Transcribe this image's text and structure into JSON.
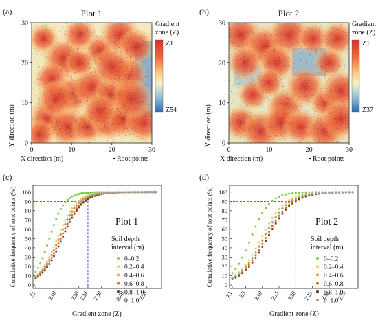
{
  "figure": {
    "panels": [
      {
        "letter": "(a)",
        "title": "Plot 1",
        "legend_title": "Gradient zone (Z)",
        "legend_top": "Z1",
        "legend_bottom": "Z54"
      },
      {
        "letter": "(b)",
        "title": "Plot 2",
        "legend_title": "Gradient zone (Z)",
        "legend_top": "Z1",
        "legend_bottom": "Z37"
      },
      {
        "letter": "(c)",
        "title": "Plot 1",
        "legend_header": "Soil depth interval  (m)",
        "ref_label": "Z24"
      },
      {
        "letter": "(d)",
        "title": "Plot 2",
        "legend_header": "Soil depth interval  (m)",
        "ref_label": "Z20"
      }
    ],
    "map_xlabel": "X direction (m)",
    "map_ylabel": "Y direction (m)",
    "root_points_label": "Root points",
    "curve_xlabel": "Gradient zone (Z)",
    "curve_ylabel": "Cumulative frequency of root points (%)"
  },
  "chart_data": [
    {
      "id": "a",
      "type": "heatmap",
      "title": "Plot 1",
      "xlabel": "X direction (m)",
      "ylabel": "Y direction (m)",
      "xlim": [
        0,
        30
      ],
      "ylim": [
        0,
        30
      ],
      "xticks": [
        0,
        10,
        20,
        30
      ],
      "yticks": [
        0,
        10,
        20,
        30
      ],
      "colorbar": {
        "title": "Gradient zone (Z)",
        "top": "Z1",
        "bottom": "Z54"
      },
      "colors": {
        "high": "#d73027",
        "mid": "#f7f1c6",
        "low": "#2f6db5"
      },
      "root_point_centers": [
        [
          3,
          26
        ],
        [
          8,
          21
        ],
        [
          12,
          27
        ],
        [
          17,
          23
        ],
        [
          22,
          27
        ],
        [
          26,
          24
        ],
        [
          5,
          16
        ],
        [
          10,
          12
        ],
        [
          15,
          14
        ],
        [
          20,
          12
        ],
        [
          24,
          17
        ],
        [
          4,
          6
        ],
        [
          9,
          4
        ],
        [
          14,
          4
        ],
        [
          19,
          5
        ],
        [
          23,
          6
        ],
        [
          28,
          5
        ],
        [
          12,
          20
        ],
        [
          6,
          11
        ],
        [
          17,
          8
        ],
        [
          25,
          11
        ],
        [
          20,
          19
        ],
        [
          2,
          2
        ]
      ]
    },
    {
      "id": "b",
      "type": "heatmap",
      "title": "Plot 2",
      "xlabel": "X direction (m)",
      "ylabel": "Y direction (m)",
      "xlim": [
        0,
        30
      ],
      "ylim": [
        0,
        30
      ],
      "xticks": [
        0,
        10,
        20,
        30
      ],
      "yticks": [
        0,
        10,
        20,
        30
      ],
      "colorbar": {
        "title": "Gradient zone (Z)",
        "top": "Z1",
        "bottom": "Z37"
      },
      "colors": {
        "high": "#d73027",
        "mid": "#f7f1c6",
        "low": "#2f6db5"
      },
      "root_point_centers": [
        [
          3,
          27
        ],
        [
          9,
          24
        ],
        [
          15,
          27
        ],
        [
          21,
          26
        ],
        [
          27,
          26
        ],
        [
          4,
          20
        ],
        [
          12,
          20
        ],
        [
          25,
          20
        ],
        [
          6,
          12
        ],
        [
          10,
          15
        ],
        [
          14,
          9
        ],
        [
          19,
          14
        ],
        [
          24,
          10
        ],
        [
          28,
          13
        ],
        [
          3,
          5
        ],
        [
          8,
          3
        ],
        [
          13,
          5
        ],
        [
          18,
          4
        ],
        [
          24,
          3
        ],
        [
          28,
          6
        ]
      ]
    },
    {
      "id": "c",
      "type": "scatter",
      "title": "Plot 1",
      "xlabel": "Gradient zone (Z)",
      "ylabel": "Cumulative frequency of root points (%)",
      "xlim": [
        1,
        54
      ],
      "ylim": [
        0,
        105
      ],
      "xticks": [
        "Z1",
        "Z10",
        "Z20",
        "Z24",
        "Z30",
        "Z40",
        "Z50"
      ],
      "yticks": [
        0,
        10,
        20,
        30,
        40,
        50,
        60,
        70,
        80,
        90,
        100
      ],
      "reference": {
        "x": 24,
        "y": 90,
        "label": "Z24"
      },
      "legend_title": "Soil depth interval  (m)",
      "series": [
        {
          "name": "0–0.2",
          "color": "#7ac943",
          "marker": "circle",
          "z_mid": 7.0,
          "slope": 0.3
        },
        {
          "name": "0.2–0.4",
          "color": "#f4d03f",
          "marker": "circle",
          "z_mid": 10.5,
          "slope": 0.24
        },
        {
          "name": "0.4–0.6",
          "color": "#e8a21f",
          "marker": "circle",
          "z_mid": 11.3,
          "slope": 0.23
        },
        {
          "name": "0.6–0.8",
          "color": "#e8641a",
          "marker": "circle",
          "z_mid": 12.0,
          "slope": 0.22
        },
        {
          "name": "0.8–1.0",
          "color": "#7a3b10",
          "marker": "circle",
          "z_mid": 12.6,
          "slope": 0.22
        },
        {
          "name": "0–1.0",
          "color": "#a0a0a0",
          "marker": "diamond",
          "z_mid": 11.2,
          "slope": 0.23
        }
      ]
    },
    {
      "id": "d",
      "type": "scatter",
      "title": "Plot 2",
      "xlabel": "Gradient zone (Z)",
      "ylabel": "Cumulative frequency of root points (%)",
      "xlim": [
        1,
        37
      ],
      "ylim": [
        0,
        105
      ],
      "xticks": [
        "Z1",
        "Z5",
        "Z10",
        "Z15",
        "Z20",
        "Z25",
        "Z30",
        "Z35"
      ],
      "yticks": [
        0,
        10,
        20,
        30,
        40,
        50,
        60,
        70,
        80,
        90,
        100
      ],
      "reference": {
        "x": 20,
        "y": 90,
        "label": "Z20"
      },
      "legend_title": "Soil depth interval  (m)",
      "series": [
        {
          "name": "0–0.2",
          "color": "#7ac943",
          "marker": "circle",
          "z_mid": 6.5,
          "slope": 0.35
        },
        {
          "name": "0.2–0.4",
          "color": "#f4d03f",
          "marker": "circle",
          "z_mid": 9.6,
          "slope": 0.28
        },
        {
          "name": "0.4–0.6",
          "color": "#e8a21f",
          "marker": "circle",
          "z_mid": 10.3,
          "slope": 0.27
        },
        {
          "name": "0.6–0.8",
          "color": "#e8641a",
          "marker": "circle",
          "z_mid": 10.9,
          "slope": 0.26
        },
        {
          "name": "0.8–1.0",
          "color": "#7a3b10",
          "marker": "circle",
          "z_mid": 11.4,
          "slope": 0.26
        },
        {
          "name": "0–1.0",
          "color": "#a0a0a0",
          "marker": "diamond",
          "z_mid": 10.3,
          "slope": 0.27
        }
      ]
    }
  ]
}
